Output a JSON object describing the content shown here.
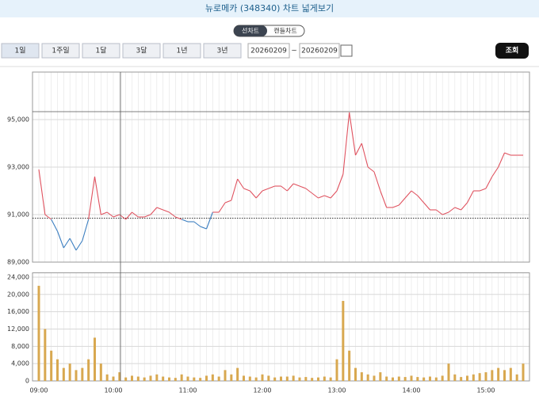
{
  "header": {
    "title": "뉴로메카 (348340) 차트 넓게보기"
  },
  "toggle": [
    "선차트",
    "캔들차트"
  ],
  "periods": [
    "1일",
    "1주일",
    "1달",
    "3달",
    "1년",
    "3년"
  ],
  "date_from": "20260209",
  "date_sep": "~",
  "date_to": "20260209",
  "search": "조회",
  "chart_data": [
    {
      "type": "line",
      "base": 90850,
      "up_color": "#e0525f",
      "down_color": "#3b7ec0",
      "categories": [
        "09:00",
        null,
        null,
        null,
        null,
        null,
        null,
        null,
        null,
        null,
        null,
        null,
        "10:00",
        null,
        null,
        null,
        null,
        null,
        null,
        null,
        null,
        null,
        null,
        null,
        "11:00",
        null,
        null,
        null,
        null,
        null,
        null,
        null,
        null,
        null,
        null,
        null,
        "12:00",
        null,
        null,
        null,
        null,
        null,
        null,
        null,
        null,
        null,
        null,
        null,
        "13:00",
        null,
        null,
        null,
        null,
        null,
        null,
        null,
        null,
        null,
        null,
        null,
        "14:00",
        null,
        null,
        null,
        null,
        null,
        null,
        null,
        null,
        null,
        null,
        null,
        "15:00",
        null,
        null,
        null,
        null,
        null,
        null
      ],
      "values": [
        92900,
        91000,
        90800,
        90300,
        89600,
        90000,
        89500,
        89900,
        90800,
        92600,
        91000,
        91100,
        90900,
        91000,
        90800,
        91100,
        90900,
        90900,
        91000,
        91300,
        91200,
        91100,
        90900,
        90800,
        90700,
        90700,
        90500,
        90400,
        91100,
        91100,
        91500,
        91600,
        92500,
        92100,
        92000,
        91700,
        92000,
        92100,
        92200,
        92200,
        92000,
        92300,
        92200,
        92100,
        91900,
        91700,
        91800,
        91700,
        92000,
        92700,
        95300,
        93500,
        94000,
        93000,
        92800,
        92000,
        91300,
        91300,
        91400,
        91700,
        92000,
        91800,
        91500,
        91200,
        91200,
        91000,
        91100,
        91300,
        91200,
        91500,
        92000,
        92000,
        92100,
        92600,
        93000,
        93600,
        93500,
        93500,
        93500
      ],
      "ylim": [
        89000,
        97000
      ],
      "yticks": [
        {
          "value": 89000,
          "label": "89,000"
        },
        {
          "value": 91000,
          "label": "91,000"
        },
        {
          "value": 93000,
          "label": "93,000"
        },
        {
          "value": 95000,
          "label": "95,000"
        }
      ]
    },
    {
      "type": "bar",
      "color": "#d8a850",
      "values": [
        22000,
        12000,
        7000,
        5000,
        3000,
        4000,
        2500,
        3000,
        5000,
        10000,
        4000,
        1500,
        1000,
        2000,
        800,
        1200,
        1000,
        800,
        1200,
        1500,
        1000,
        800,
        700,
        1500,
        1000,
        800,
        700,
        1200,
        1500,
        1000,
        2500,
        1500,
        3000,
        1200,
        1000,
        800,
        1500,
        1200,
        800,
        1000,
        1000,
        1200,
        800,
        900,
        700,
        800,
        1000,
        800,
        5000,
        18500,
        7000,
        3000,
        2000,
        1500,
        1200,
        2000,
        1000,
        800,
        1000,
        900,
        1200,
        900,
        800,
        1000,
        800,
        1200,
        4000,
        1500,
        900,
        1200,
        1500,
        1800,
        2000,
        2500,
        3000,
        2500,
        3000,
        1500,
        4000
      ],
      "ylim": [
        0,
        25000
      ],
      "yticks": [
        0,
        {
          "value": 4000,
          "label": "4,000"
        },
        {
          "value": 8000,
          "label": "8,000"
        },
        {
          "value": 12000,
          "label": "12,000"
        },
        {
          "value": 16000,
          "label": "16,000"
        },
        {
          "value": 20000,
          "label": "20,000"
        },
        {
          "value": 24000,
          "label": "24,000"
        }
      ]
    }
  ]
}
